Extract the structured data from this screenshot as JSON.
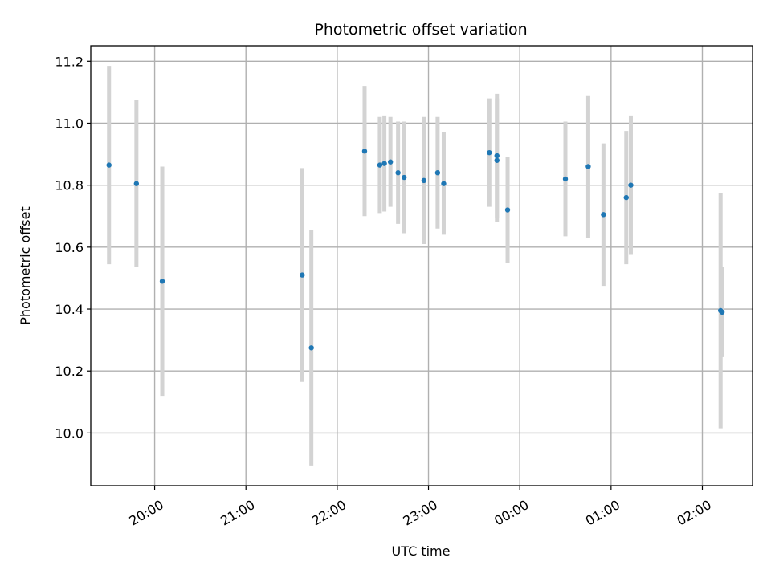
{
  "chart_data": {
    "type": "scatter",
    "title": "Photometric offset variation",
    "xlabel": "UTC time",
    "ylabel": "Photometric offset",
    "x_axis": {
      "type": "time",
      "ticks": [
        "20:00",
        "21:00",
        "22:00",
        "23:00",
        "00:00",
        "01:00",
        "02:00"
      ],
      "range": [
        "19:18",
        "02:33"
      ]
    },
    "y_axis": {
      "ylim": [
        9.83,
        11.25
      ],
      "ticks": [
        "10.0",
        "10.2",
        "10.4",
        "10.6",
        "10.8",
        "11.0",
        "11.2"
      ]
    },
    "grid": true,
    "colors": {
      "points": "#1f77b4",
      "error_bars": "#d3d3d3"
    },
    "series": [
      {
        "points": [
          {
            "x": "19:30",
            "y": 10.865,
            "err": 0.32
          },
          {
            "x": "19:48",
            "y": 10.805,
            "err": 0.27
          },
          {
            "x": "20:05",
            "y": 10.49,
            "err": 0.37
          },
          {
            "x": "21:37",
            "y": 10.51,
            "err": 0.345
          },
          {
            "x": "21:43",
            "y": 10.275,
            "err": 0.38
          },
          {
            "x": "22:18",
            "y": 10.91,
            "err": 0.21
          },
          {
            "x": "22:28",
            "y": 10.865,
            "err": 0.155
          },
          {
            "x": "22:31",
            "y": 10.87,
            "err": 0.155
          },
          {
            "x": "22:35",
            "y": 10.875,
            "err": 0.145
          },
          {
            "x": "22:40",
            "y": 10.84,
            "err": 0.165
          },
          {
            "x": "22:44",
            "y": 10.825,
            "err": 0.18
          },
          {
            "x": "22:57",
            "y": 10.815,
            "err": 0.205
          },
          {
            "x": "23:06",
            "y": 10.84,
            "err": 0.18
          },
          {
            "x": "23:10",
            "y": 10.805,
            "err": 0.165
          },
          {
            "x": "23:40",
            "y": 10.905,
            "err": 0.175
          },
          {
            "x": "23:45",
            "y": 10.895,
            "err": 0.2
          },
          {
            "x": "23:45",
            "y": 10.88,
            "err": 0.2
          },
          {
            "x": "23:52",
            "y": 10.72,
            "err": 0.17
          },
          {
            "x": "00:30",
            "y": 10.82,
            "err": 0.185
          },
          {
            "x": "00:45",
            "y": 10.86,
            "err": 0.23
          },
          {
            "x": "00:55",
            "y": 10.705,
            "err": 0.23
          },
          {
            "x": "01:10",
            "y": 10.76,
            "err": 0.215
          },
          {
            "x": "01:13",
            "y": 10.8,
            "err": 0.225
          },
          {
            "x": "02:12",
            "y": 10.395,
            "err": 0.38
          },
          {
            "x": "02:13",
            "y": 10.39,
            "err": 0.145
          }
        ]
      }
    ]
  }
}
